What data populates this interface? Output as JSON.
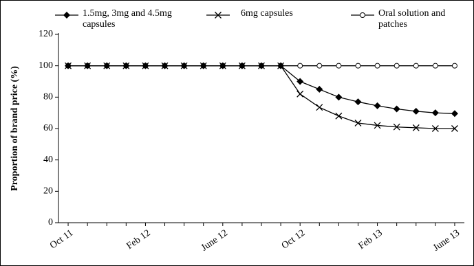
{
  "chart_data": {
    "type": "line",
    "ylabel": "Proportion of brand price (%)",
    "categories": [
      "Oct 11",
      null,
      null,
      null,
      "Feb 12",
      null,
      null,
      null,
      "June 12",
      null,
      null,
      null,
      "Oct 12",
      null,
      null,
      null,
      "Feb 13",
      null,
      null,
      null,
      "June 13"
    ],
    "series": [
      {
        "name": "Oral solution and patches",
        "color": "#000000",
        "marker": "circle",
        "values": [
          100,
          100,
          100,
          100,
          100,
          100,
          100,
          100,
          100,
          100,
          100,
          100,
          100,
          100,
          100,
          100,
          100,
          100,
          100,
          100,
          100
        ]
      },
      {
        "name": "6mg capsules",
        "color": "#000000",
        "marker": "cross",
        "values": [
          100,
          100,
          100,
          100,
          100,
          100,
          100,
          100,
          100,
          100,
          100,
          100,
          82,
          73.5,
          68,
          63.5,
          62,
          61,
          60.5,
          60,
          60
        ]
      },
      {
        "name": "1.5mg, 3mg and 4.5mg capsules",
        "color": "#000000",
        "marker": "diamond",
        "values": [
          100,
          100,
          100,
          100,
          100,
          100,
          100,
          100,
          100,
          100,
          100,
          100,
          90,
          85,
          80,
          77,
          74.5,
          72.5,
          71,
          70,
          69.5
        ]
      }
    ],
    "ylim": [
      0,
      120
    ],
    "yticks": [
      0,
      20,
      40,
      60,
      80,
      100,
      120
    ],
    "grid": false
  }
}
